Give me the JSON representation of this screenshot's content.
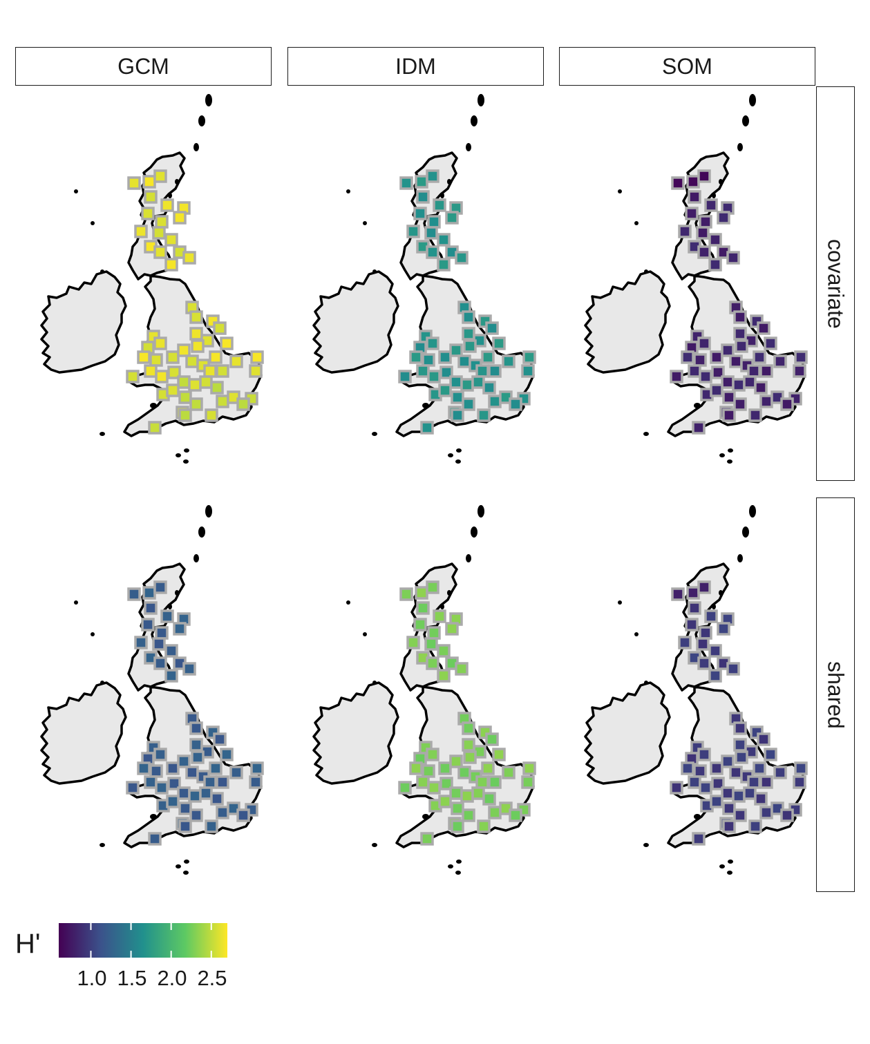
{
  "columns": [
    "GCM",
    "IDM",
    "SOM"
  ],
  "rows": [
    "covariate",
    "shared"
  ],
  "panel_values": [
    [
      2.62,
      1.68,
      0.82
    ],
    [
      1.22,
      2.28,
      0.98
    ]
  ],
  "legend": {
    "title": "H'",
    "min": 0.6,
    "max": 2.7,
    "ticks": [
      "1.0",
      "1.5",
      "2.0",
      "2.5"
    ],
    "tick_values": [
      1.0,
      1.5,
      2.0,
      2.5
    ],
    "colors": [
      "#440154",
      "#3b528b",
      "#21908d",
      "#5dc963",
      "#fde725"
    ]
  }
}
